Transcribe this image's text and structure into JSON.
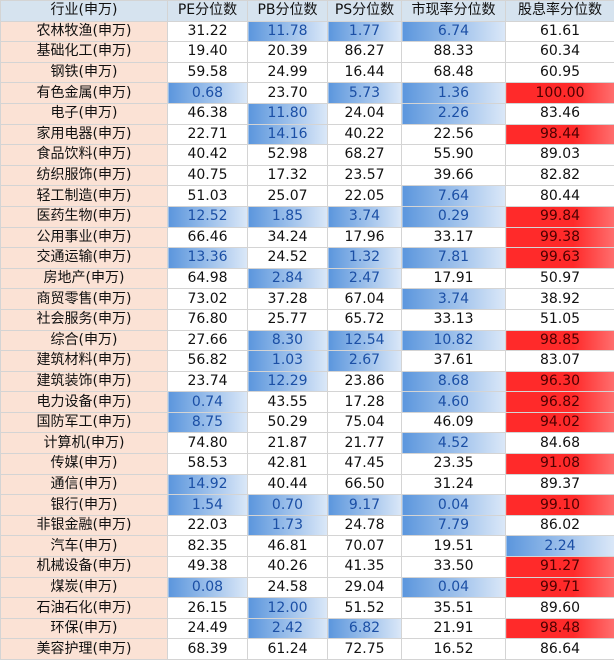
{
  "headers": [
    "行业(申万)",
    "PE分位数",
    "PB分位数",
    "PS分位数",
    "市现率分位数",
    "股息率分位数"
  ],
  "colors": {
    "header_bg": "#d6e3ef",
    "industry_bg": "#fbe2d5",
    "blue_bar": "#5b96dd",
    "red_bar": "#ff2a2a",
    "grid": "#d4d4d4"
  },
  "rows": [
    {
      "industry": "农林牧渔(申万)",
      "pe": "31.22",
      "pb": "11.78",
      "ps": "1.77",
      "pcf": "6.74",
      "dy": "61.61"
    },
    {
      "industry": "基础化工(申万)",
      "pe": "19.40",
      "pb": "20.39",
      "ps": "86.27",
      "pcf": "88.33",
      "dy": "60.34"
    },
    {
      "industry": "钢铁(申万)",
      "pe": "59.58",
      "pb": "24.99",
      "ps": "16.44",
      "pcf": "68.48",
      "dy": "60.95"
    },
    {
      "industry": "有色金属(申万)",
      "pe": "0.68",
      "pb": "23.70",
      "ps": "5.73",
      "pcf": "1.36",
      "dy": "100.00"
    },
    {
      "industry": "电子(申万)",
      "pe": "46.38",
      "pb": "11.80",
      "ps": "24.04",
      "pcf": "2.26",
      "dy": "83.46"
    },
    {
      "industry": "家用电器(申万)",
      "pe": "22.71",
      "pb": "14.16",
      "ps": "40.22",
      "pcf": "22.56",
      "dy": "98.44"
    },
    {
      "industry": "食品饮料(申万)",
      "pe": "40.42",
      "pb": "52.98",
      "ps": "68.27",
      "pcf": "55.90",
      "dy": "89.03"
    },
    {
      "industry": "纺织服饰(申万)",
      "pe": "40.75",
      "pb": "17.32",
      "ps": "23.57",
      "pcf": "39.66",
      "dy": "82.82"
    },
    {
      "industry": "轻工制造(申万)",
      "pe": "51.03",
      "pb": "25.07",
      "ps": "22.05",
      "pcf": "7.64",
      "dy": "80.44"
    },
    {
      "industry": "医药生物(申万)",
      "pe": "12.52",
      "pb": "1.85",
      "ps": "3.74",
      "pcf": "0.29",
      "dy": "99.84"
    },
    {
      "industry": "公用事业(申万)",
      "pe": "66.46",
      "pb": "34.24",
      "ps": "17.96",
      "pcf": "33.17",
      "dy": "99.38"
    },
    {
      "industry": "交通运输(申万)",
      "pe": "13.36",
      "pb": "24.52",
      "ps": "1.32",
      "pcf": "7.81",
      "dy": "99.63"
    },
    {
      "industry": "房地产(申万)",
      "pe": "64.98",
      "pb": "2.84",
      "ps": "2.47",
      "pcf": "17.91",
      "dy": "50.97"
    },
    {
      "industry": "商贸零售(申万)",
      "pe": "73.02",
      "pb": "37.28",
      "ps": "67.04",
      "pcf": "3.74",
      "dy": "38.92"
    },
    {
      "industry": "社会服务(申万)",
      "pe": "76.80",
      "pb": "25.77",
      "ps": "65.72",
      "pcf": "33.13",
      "dy": "51.05"
    },
    {
      "industry": "综合(申万)",
      "pe": "27.66",
      "pb": "8.30",
      "ps": "12.54",
      "pcf": "10.82",
      "dy": "98.85"
    },
    {
      "industry": "建筑材料(申万)",
      "pe": "56.82",
      "pb": "1.03",
      "ps": "2.67",
      "pcf": "37.61",
      "dy": "83.07"
    },
    {
      "industry": "建筑装饰(申万)",
      "pe": "23.74",
      "pb": "12.29",
      "ps": "23.86",
      "pcf": "8.68",
      "dy": "96.30"
    },
    {
      "industry": "电力设备(申万)",
      "pe": "0.74",
      "pb": "43.55",
      "ps": "17.28",
      "pcf": "4.60",
      "dy": "96.82"
    },
    {
      "industry": "国防军工(申万)",
      "pe": "8.75",
      "pb": "50.29",
      "ps": "75.04",
      "pcf": "46.09",
      "dy": "94.02"
    },
    {
      "industry": "计算机(申万)",
      "pe": "74.80",
      "pb": "21.87",
      "ps": "21.77",
      "pcf": "4.52",
      "dy": "84.68"
    },
    {
      "industry": "传媒(申万)",
      "pe": "58.53",
      "pb": "42.81",
      "ps": "47.45",
      "pcf": "23.35",
      "dy": "91.08"
    },
    {
      "industry": "通信(申万)",
      "pe": "14.92",
      "pb": "40.44",
      "ps": "66.50",
      "pcf": "31.24",
      "dy": "89.37"
    },
    {
      "industry": "银行(申万)",
      "pe": "1.54",
      "pb": "0.70",
      "ps": "9.17",
      "pcf": "0.04",
      "dy": "99.10"
    },
    {
      "industry": "非银金融(申万)",
      "pe": "22.03",
      "pb": "1.73",
      "ps": "24.78",
      "pcf": "7.79",
      "dy": "86.02"
    },
    {
      "industry": "汽车(申万)",
      "pe": "82.35",
      "pb": "46.81",
      "ps": "70.07",
      "pcf": "19.51",
      "dy": "2.24"
    },
    {
      "industry": "机械设备(申万)",
      "pe": "49.38",
      "pb": "40.26",
      "ps": "41.35",
      "pcf": "33.50",
      "dy": "91.27"
    },
    {
      "industry": "煤炭(申万)",
      "pe": "0.08",
      "pb": "24.58",
      "ps": "29.04",
      "pcf": "0.04",
      "dy": "99.71"
    },
    {
      "industry": "石油石化(申万)",
      "pe": "26.15",
      "pb": "12.00",
      "ps": "51.52",
      "pcf": "35.51",
      "dy": "89.60"
    },
    {
      "industry": "环保(申万)",
      "pe": "24.49",
      "pb": "2.42",
      "ps": "6.82",
      "pcf": "21.91",
      "dy": "98.48"
    },
    {
      "industry": "美容护理(申万)",
      "pe": "68.39",
      "pb": "61.24",
      "ps": "72.75",
      "pcf": "16.52",
      "dy": "86.64"
    }
  ]
}
